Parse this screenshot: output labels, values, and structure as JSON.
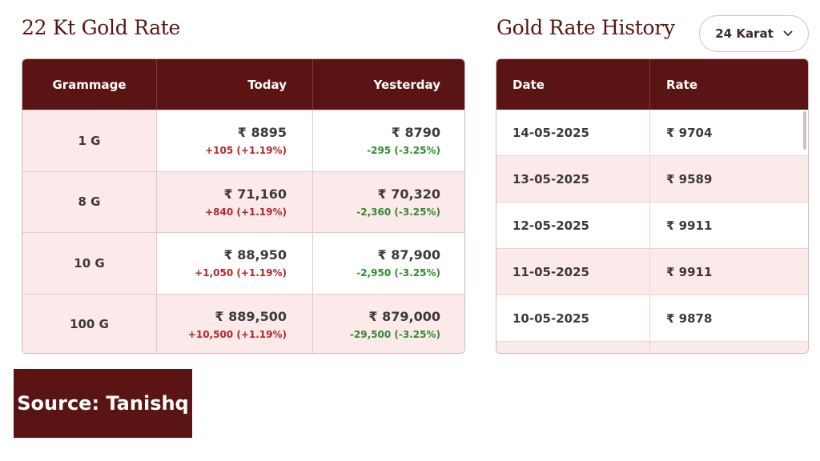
{
  "rate_section": {
    "title": "22 Kt Gold Rate",
    "headers": {
      "grammage": "Grammage",
      "today": "Today",
      "yesterday": "Yesterday"
    },
    "rows": [
      {
        "grammage": "1 G",
        "today_price": "₹ 8895",
        "today_change": "+105 (+1.19%)",
        "yesterday_price": "₹ 8790",
        "yesterday_change": "-295 (-3.25%)"
      },
      {
        "grammage": "8 G",
        "today_price": "₹ 71,160",
        "today_change": "+840 (+1.19%)",
        "yesterday_price": "₹ 70,320",
        "yesterday_change": "-2,360 (-3.25%)"
      },
      {
        "grammage": "10 G",
        "today_price": "₹ 88,950",
        "today_change": "+1,050 (+1.19%)",
        "yesterday_price": "₹ 87,900",
        "yesterday_change": "-2,950 (-3.25%)"
      },
      {
        "grammage": "100 G",
        "today_price": "₹ 889,500",
        "today_change": "+10,500 (+1.19%)",
        "yesterday_price": "₹ 879,000",
        "yesterday_change": "-29,500 (-3.25%)"
      }
    ]
  },
  "history_section": {
    "title": "Gold Rate History",
    "karat_select": {
      "value": "24 Karat",
      "icon": "chevron-down-icon"
    },
    "headers": {
      "date": "Date",
      "rate": "Rate"
    },
    "rows": [
      {
        "date": "14-05-2025",
        "rate": "₹ 9704"
      },
      {
        "date": "13-05-2025",
        "rate": "₹ 9589"
      },
      {
        "date": "12-05-2025",
        "rate": "₹ 9911"
      },
      {
        "date": "11-05-2025",
        "rate": "₹ 9911"
      },
      {
        "date": "10-05-2025",
        "rate": "₹ 9878"
      }
    ]
  },
  "source_label": "Source: Tanishq",
  "colors": {
    "brand": "#5a1414",
    "row_tint": "#fce9ea",
    "up": "#b3262a",
    "down": "#2e8b2e"
  }
}
